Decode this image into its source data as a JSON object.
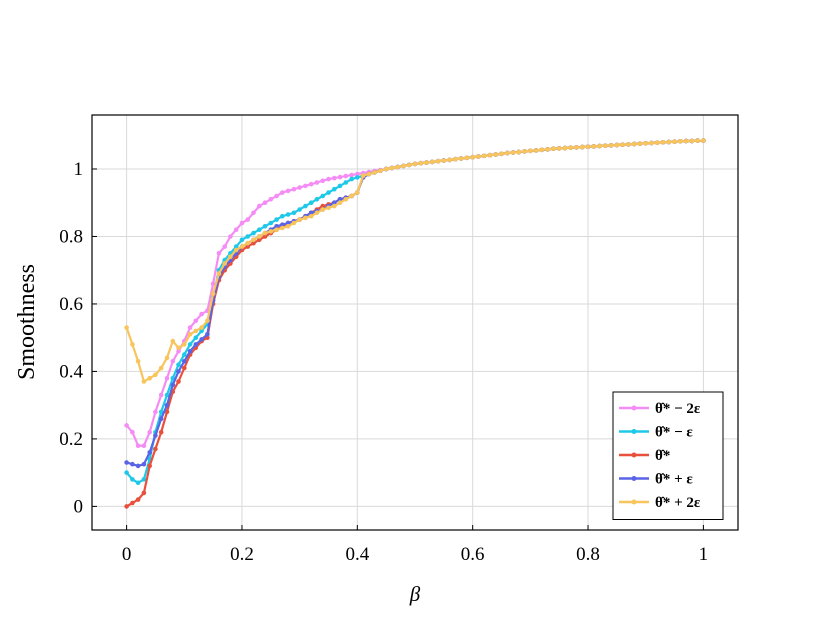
{
  "chart_data": {
    "type": "line",
    "xlabel": "β",
    "ylabel": "Smoothness",
    "xlim": [
      -0.06,
      1.06
    ],
    "ylim": [
      -0.07,
      1.16
    ],
    "xticks": [
      0,
      0.2,
      0.4,
      0.6,
      0.8,
      1
    ],
    "xtick_labels": [
      "0",
      "0.2",
      "0.4",
      "0.6",
      "0.8",
      "1"
    ],
    "yticks": [
      0,
      0.2,
      0.4,
      0.6,
      0.8,
      1
    ],
    "ytick_labels": [
      "0",
      "0.2",
      "0.4",
      "0.6",
      "0.8",
      "1"
    ],
    "grid": true,
    "legend_position": "bottom-right",
    "x": [
      0,
      0.01,
      0.02,
      0.03,
      0.04,
      0.05,
      0.06,
      0.07,
      0.08,
      0.09,
      0.1,
      0.11,
      0.12,
      0.13,
      0.14,
      0.15,
      0.16,
      0.17,
      0.18,
      0.19,
      0.2,
      0.21,
      0.22,
      0.23,
      0.24,
      0.25,
      0.26,
      0.27,
      0.28,
      0.29,
      0.3,
      0.31,
      0.32,
      0.33,
      0.34,
      0.35,
      0.36,
      0.37,
      0.38,
      0.39,
      0.4,
      0.41,
      0.42,
      0.43,
      0.44,
      0.45,
      0.46,
      0.47,
      0.48,
      0.49,
      0.5,
      0.51,
      0.52,
      0.53,
      0.54,
      0.55,
      0.56,
      0.57,
      0.58,
      0.59,
      0.6,
      0.61,
      0.62,
      0.63,
      0.64,
      0.65,
      0.66,
      0.67,
      0.68,
      0.69,
      0.7,
      0.71,
      0.72,
      0.73,
      0.74,
      0.75,
      0.76,
      0.77,
      0.78,
      0.79,
      0.8,
      0.81,
      0.82,
      0.83,
      0.84,
      0.85,
      0.86,
      0.87,
      0.88,
      0.89,
      0.9,
      0.91,
      0.92,
      0.93,
      0.94,
      0.95,
      0.96,
      0.97,
      0.98,
      0.99,
      1
    ],
    "series": [
      {
        "name": "θ̂* − 2ε",
        "color": "#f58cf5",
        "values": [
          0.24,
          0.22,
          0.18,
          0.18,
          0.22,
          0.28,
          0.33,
          0.38,
          0.43,
          0.46,
          0.49,
          0.53,
          0.55,
          0.57,
          0.58,
          0.66,
          0.75,
          0.77,
          0.8,
          0.82,
          0.84,
          0.85,
          0.87,
          0.89,
          0.9,
          0.91,
          0.92,
          0.93,
          0.935,
          0.94,
          0.945,
          0.95,
          0.955,
          0.96,
          0.965,
          0.97,
          0.973,
          0.976,
          0.979,
          0.982,
          0.985,
          0.988,
          0.991,
          0.994,
          0.997,
          1.0,
          1.003,
          1.006,
          1.009,
          1.012,
          1.015,
          1.017,
          1.019,
          1.021,
          1.023,
          1.025,
          1.027,
          1.029,
          1.031,
          1.033,
          1.035,
          1.037,
          1.039,
          1.041,
          1.043,
          1.045,
          1.047,
          1.049,
          1.05,
          1.052,
          1.054,
          1.055,
          1.057,
          1.058,
          1.06,
          1.061,
          1.062,
          1.063,
          1.064,
          1.065,
          1.066,
          1.067,
          1.068,
          1.069,
          1.07,
          1.071,
          1.072,
          1.073,
          1.074,
          1.075,
          1.076,
          1.077,
          1.078,
          1.079,
          1.08,
          1.081,
          1.082,
          1.083,
          1.083,
          1.084,
          1.084
        ]
      },
      {
        "name": "θ̂* − ε",
        "color": "#1ec8e8",
        "values": [
          0.1,
          0.08,
          0.07,
          0.08,
          0.14,
          0.22,
          0.28,
          0.33,
          0.38,
          0.42,
          0.45,
          0.48,
          0.5,
          0.52,
          0.54,
          0.62,
          0.7,
          0.73,
          0.75,
          0.77,
          0.79,
          0.8,
          0.81,
          0.82,
          0.83,
          0.84,
          0.85,
          0.86,
          0.865,
          0.87,
          0.88,
          0.89,
          0.9,
          0.91,
          0.92,
          0.93,
          0.94,
          0.95,
          0.96,
          0.97,
          0.975,
          0.98,
          0.985,
          0.99,
          0.995,
          1.0,
          1.003,
          1.006,
          1.009,
          1.012,
          1.015,
          1.017,
          1.019,
          1.021,
          1.023,
          1.025,
          1.027,
          1.029,
          1.031,
          1.033,
          1.035,
          1.037,
          1.039,
          1.041,
          1.043,
          1.045,
          1.047,
          1.049,
          1.05,
          1.052,
          1.054,
          1.055,
          1.057,
          1.058,
          1.06,
          1.061,
          1.062,
          1.063,
          1.064,
          1.065,
          1.066,
          1.067,
          1.068,
          1.069,
          1.07,
          1.071,
          1.072,
          1.073,
          1.074,
          1.075,
          1.076,
          1.077,
          1.078,
          1.079,
          1.08,
          1.081,
          1.082,
          1.083,
          1.083,
          1.084,
          1.084
        ]
      },
      {
        "name": "θ̂*",
        "color": "#e8503c",
        "values": [
          0.0,
          0.01,
          0.02,
          0.04,
          0.12,
          0.17,
          0.22,
          0.28,
          0.34,
          0.37,
          0.41,
          0.45,
          0.47,
          0.49,
          0.5,
          0.6,
          0.67,
          0.7,
          0.72,
          0.74,
          0.76,
          0.77,
          0.78,
          0.79,
          0.8,
          0.81,
          0.82,
          0.83,
          0.84,
          0.845,
          0.85,
          0.86,
          0.87,
          0.88,
          0.89,
          0.895,
          0.9,
          0.91,
          0.915,
          0.92,
          0.93,
          0.975,
          0.985,
          0.99,
          0.995,
          1.0,
          1.003,
          1.006,
          1.009,
          1.012,
          1.015,
          1.017,
          1.019,
          1.021,
          1.023,
          1.025,
          1.027,
          1.029,
          1.031,
          1.033,
          1.035,
          1.037,
          1.039,
          1.041,
          1.043,
          1.045,
          1.047,
          1.049,
          1.05,
          1.052,
          1.054,
          1.055,
          1.057,
          1.058,
          1.06,
          1.061,
          1.062,
          1.063,
          1.064,
          1.065,
          1.066,
          1.067,
          1.068,
          1.069,
          1.07,
          1.071,
          1.072,
          1.073,
          1.074,
          1.075,
          1.076,
          1.077,
          1.078,
          1.079,
          1.08,
          1.081,
          1.082,
          1.083,
          1.083,
          1.084,
          1.084
        ]
      },
      {
        "name": "θ̂* + ε",
        "color": "#5a64e6",
        "values": [
          0.13,
          0.125,
          0.12,
          0.125,
          0.16,
          0.21,
          0.26,
          0.3,
          0.36,
          0.4,
          0.43,
          0.46,
          0.48,
          0.495,
          0.51,
          0.61,
          0.68,
          0.71,
          0.73,
          0.75,
          0.77,
          0.78,
          0.79,
          0.8,
          0.81,
          0.82,
          0.83,
          0.835,
          0.84,
          0.845,
          0.85,
          0.86,
          0.87,
          0.875,
          0.88,
          0.89,
          0.9,
          0.91,
          0.915,
          0.92,
          0.93,
          0.975,
          0.985,
          0.99,
          0.995,
          1.0,
          1.003,
          1.006,
          1.009,
          1.012,
          1.015,
          1.017,
          1.019,
          1.021,
          1.023,
          1.025,
          1.027,
          1.029,
          1.031,
          1.033,
          1.035,
          1.037,
          1.039,
          1.041,
          1.043,
          1.045,
          1.047,
          1.049,
          1.05,
          1.052,
          1.054,
          1.055,
          1.057,
          1.058,
          1.06,
          1.061,
          1.062,
          1.063,
          1.064,
          1.065,
          1.066,
          1.067,
          1.068,
          1.069,
          1.07,
          1.071,
          1.072,
          1.073,
          1.074,
          1.075,
          1.076,
          1.077,
          1.078,
          1.079,
          1.08,
          1.081,
          1.082,
          1.083,
          1.083,
          1.084,
          1.084
        ]
      },
      {
        "name": "θ̂* + 2ε",
        "color": "#f8c45c",
        "values": [
          0.53,
          0.48,
          0.43,
          0.37,
          0.38,
          0.39,
          0.41,
          0.44,
          0.49,
          0.47,
          0.48,
          0.51,
          0.52,
          0.53,
          0.55,
          0.63,
          0.69,
          0.72,
          0.74,
          0.76,
          0.77,
          0.78,
          0.79,
          0.8,
          0.81,
          0.815,
          0.82,
          0.825,
          0.83,
          0.84,
          0.85,
          0.855,
          0.86,
          0.87,
          0.88,
          0.885,
          0.89,
          0.9,
          0.91,
          0.92,
          0.93,
          0.98,
          0.985,
          0.99,
          0.995,
          1.0,
          1.003,
          1.006,
          1.009,
          1.012,
          1.015,
          1.017,
          1.019,
          1.021,
          1.023,
          1.025,
          1.027,
          1.029,
          1.031,
          1.033,
          1.035,
          1.037,
          1.039,
          1.041,
          1.043,
          1.045,
          1.047,
          1.049,
          1.05,
          1.052,
          1.054,
          1.055,
          1.057,
          1.058,
          1.06,
          1.061,
          1.062,
          1.063,
          1.064,
          1.065,
          1.066,
          1.067,
          1.068,
          1.069,
          1.07,
          1.071,
          1.072,
          1.073,
          1.074,
          1.075,
          1.076,
          1.077,
          1.078,
          1.079,
          1.08,
          1.081,
          1.082,
          1.083,
          1.083,
          1.084,
          1.084
        ]
      }
    ]
  }
}
